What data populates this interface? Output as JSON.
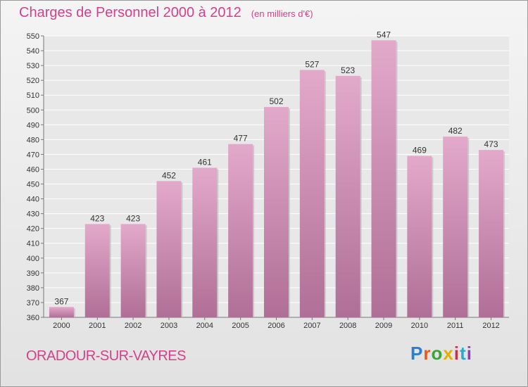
{
  "title": "Charges de Personnel 2000 à 2012",
  "unit": "(en milliers d'€)",
  "city": "ORADOUR-SUR-VAYRES",
  "logo": {
    "text": "Proxiti",
    "colors": [
      "#2a7fd0",
      "#e9591c",
      "#3aa33a",
      "#e2b100",
      "#d6284c",
      "#2aa9c9",
      "#8c3fb0"
    ]
  },
  "colors": {
    "bar_top": "#e3a9cb",
    "bar_bottom": "#b06f96",
    "title": "#d4408a"
  },
  "chart_data": {
    "type": "bar",
    "categories": [
      "2000",
      "2001",
      "2002",
      "2003",
      "2004",
      "2005",
      "2006",
      "2007",
      "2008",
      "2009",
      "2010",
      "2011",
      "2012"
    ],
    "values": [
      367,
      423,
      423,
      452,
      461,
      477,
      502,
      527,
      523,
      547,
      469,
      482,
      473
    ],
    "ylim": [
      360,
      550
    ],
    "ytick_step": 10,
    "grid": true
  }
}
